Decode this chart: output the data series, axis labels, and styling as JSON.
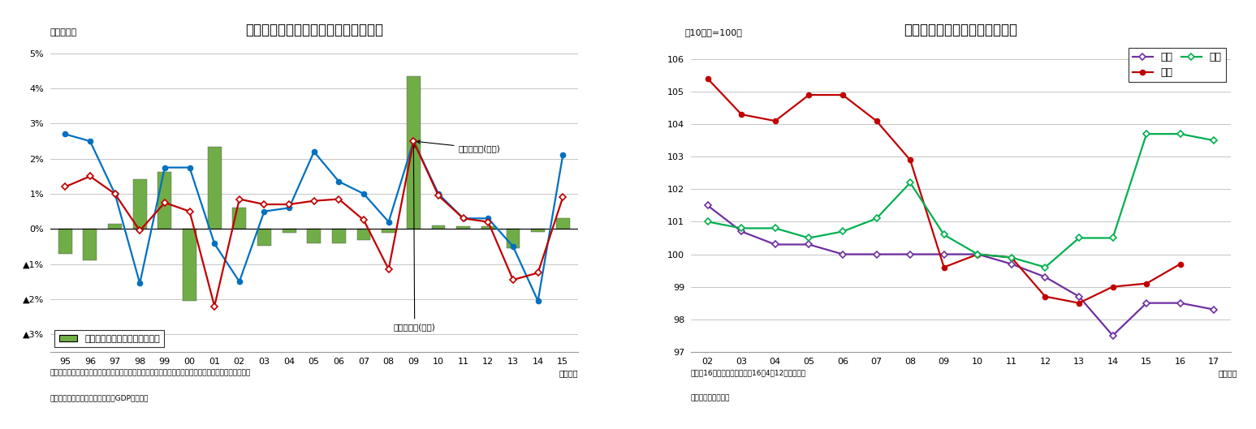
{
  "chart1": {
    "title": "雇用者報酬を下回る可処分所得の伸び",
    "ylabel": "（前年比）",
    "xlabel": "（年度）",
    "years": [
      "95",
      "96",
      "97",
      "98",
      "99",
      "00",
      "01",
      "02",
      "03",
      "04",
      "05",
      "06",
      "07",
      "08",
      "09",
      "10",
      "11",
      "12",
      "13",
      "14",
      "15"
    ],
    "bar_values": [
      -0.7,
      -0.9,
      0.15,
      1.42,
      1.62,
      -2.05,
      2.35,
      0.6,
      -0.48,
      -0.1,
      -0.42,
      -0.42,
      -0.32,
      -0.12,
      4.35,
      0.1,
      0.08,
      0.08,
      -0.55,
      -0.08,
      0.3
    ],
    "blue_line": [
      2.7,
      2.5,
      1.0,
      -1.55,
      1.75,
      1.75,
      -0.42,
      -1.5,
      0.5,
      0.6,
      2.2,
      1.35,
      1.0,
      0.2,
      2.5,
      1.0,
      0.3,
      0.3,
      -0.5,
      -2.05,
      2.1
    ],
    "red_line": [
      1.2,
      1.5,
      1.0,
      -0.05,
      0.75,
      0.5,
      -2.2,
      0.85,
      0.7,
      0.7,
      0.8,
      0.85,
      0.25,
      -1.15,
      2.5,
      0.95,
      0.3,
      0.2,
      -1.45,
      -1.25,
      0.9
    ],
    "bar_color": "#70AD47",
    "blue_color": "#0070C0",
    "red_color": "#C00000",
    "ylim": [
      -3.5,
      5.2
    ],
    "yticks": [
      -3,
      -2,
      -1,
      0,
      1,
      2,
      3,
      4,
      5
    ],
    "ytick_labels": [
      "▲3%",
      "▲2%",
      "▲1%",
      "0%",
      "1%",
      "2%",
      "3%",
      "4%",
      "5%"
    ],
    "note1": "（注）可処分所得（実質）は名目可処分所得を家計消費（除く持家の帰属家賃）デフレーターで実質化",
    "note2": "（資料）内閣府「国民経済計算（GDP統計）」",
    "legend_bar": "差（雇用者報酬ー可処分所得）",
    "label_blue": "雇用者報酬(実質)",
    "label_red": "可処分所得(実質)"
  },
  "chart2": {
    "title": "年金給付額と賃金、物価の推移",
    "ylabel": "（10年度=100）",
    "xlabel": "（年度）",
    "years": [
      "02",
      "03",
      "04",
      "05",
      "06",
      "07",
      "08",
      "09",
      "10",
      "11",
      "12",
      "13",
      "14",
      "15",
      "16",
      "17"
    ],
    "nenkin": [
      101.5,
      100.7,
      100.3,
      100.3,
      100.0,
      100.0,
      100.0,
      100.0,
      100.0,
      99.7,
      99.3,
      98.7,
      97.5,
      98.5,
      98.5,
      98.3
    ],
    "chingin": [
      105.4,
      104.3,
      104.1,
      104.9,
      104.9,
      104.1,
      102.9,
      99.6,
      100.0,
      99.9,
      98.7,
      98.5,
      99.0,
      99.1,
      99.7,
      null
    ],
    "bukka": [
      101.0,
      100.8,
      100.8,
      100.5,
      100.7,
      101.1,
      102.2,
      100.6,
      100.0,
      99.9,
      99.6,
      100.5,
      100.5,
      103.7,
      103.7,
      103.5
    ],
    "nenkin_color": "#7030A0",
    "chingin_color": "#C00000",
    "bukka_color": "#00B050",
    "ylim": [
      97,
      106.3
    ],
    "yticks": [
      97,
      98,
      99,
      100,
      101,
      102,
      103,
      104,
      105,
      106
    ],
    "label_nenkin": "年金",
    "label_chingin": "賃金",
    "label_bukka": "物価",
    "note1": "（注）16年度の賃金、物価は16年4～12月の実績値",
    "note2": "（出所）厚生労働省"
  }
}
